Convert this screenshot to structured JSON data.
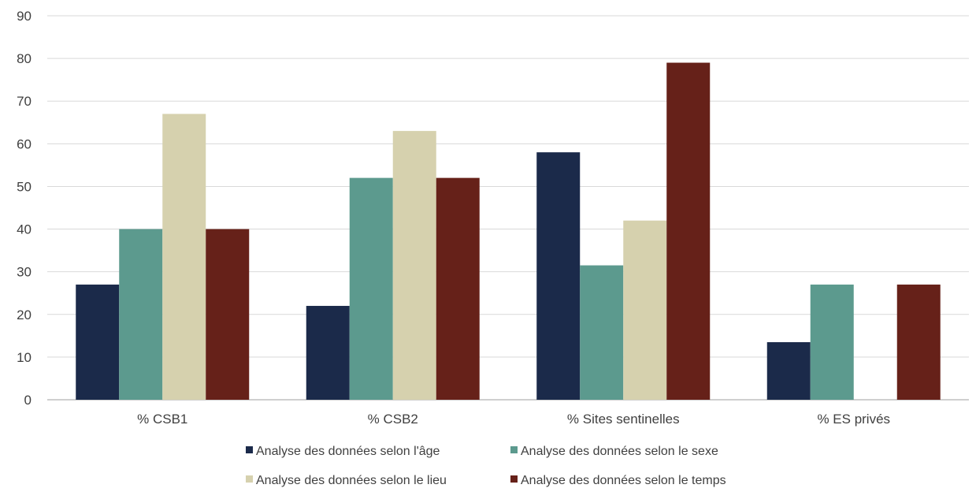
{
  "chart_data": {
    "type": "bar",
    "title": "",
    "xlabel": "",
    "ylabel": "",
    "ylim": [
      0,
      90
    ],
    "yticks": [
      0,
      10,
      20,
      30,
      40,
      50,
      60,
      70,
      80,
      90
    ],
    "grid": true,
    "legend_position": "bottom",
    "categories": [
      "% CSB1",
      "% CSB2",
      "% Sites sentinelles",
      "% ES privés"
    ],
    "series": [
      {
        "name": "Analyse des données selon l'âge",
        "color": "#1b2a4a",
        "values": [
          27,
          22,
          58,
          13.5
        ]
      },
      {
        "name": "Analyse des données selon le sexe",
        "color": "#5c9a8e",
        "values": [
          40,
          52,
          31.5,
          27
        ]
      },
      {
        "name": "Analyse des données selon le lieu",
        "color": "#d6d1ae",
        "values": [
          67,
          63,
          42,
          0
        ]
      },
      {
        "name": "Analyse des données selon le temps",
        "color": "#662119",
        "values": [
          40,
          52,
          79,
          27
        ]
      }
    ]
  }
}
